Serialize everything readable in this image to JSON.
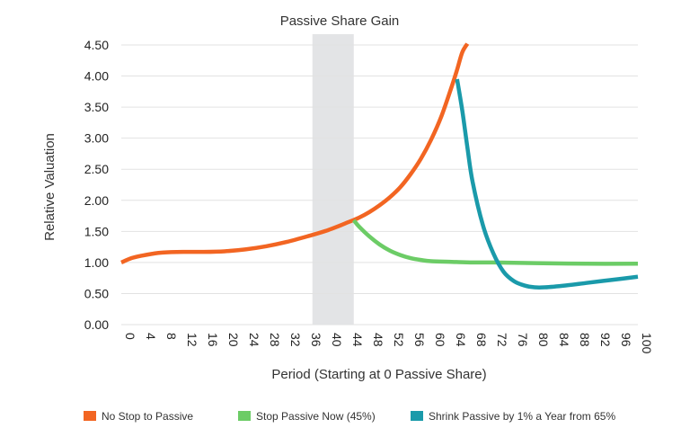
{
  "chart_data": {
    "type": "line",
    "title": "Passive Share Gain",
    "xlabel": "Period (Starting at 0 Passive Share)",
    "ylabel": "Relative Valuation",
    "xlim": [
      0,
      100
    ],
    "ylim": [
      0,
      4.5
    ],
    "x_ticks": [
      "0",
      "4",
      "8",
      "12",
      "16",
      "20",
      "24",
      "28",
      "32",
      "36",
      "40",
      "44",
      "48",
      "52",
      "56",
      "60",
      "64",
      "68",
      "72",
      "76",
      "80",
      "84",
      "88",
      "92",
      "96",
      "100"
    ],
    "y_ticks": [
      "0.00",
      "0.50",
      "1.00",
      "1.50",
      "2.00",
      "2.50",
      "3.00",
      "3.50",
      "4.00",
      "4.50"
    ],
    "shaded_region": {
      "x_start": 37,
      "x_end": 45
    },
    "grid": "horizontal",
    "legend_position": "bottom",
    "series": [
      {
        "name": "No Stop to Passive",
        "color": "#f26522",
        "x": [
          0,
          2,
          4,
          6,
          8,
          12,
          16,
          20,
          24,
          28,
          32,
          36,
          40,
          44,
          46,
          48,
          50,
          52,
          54,
          56,
          58,
          60,
          62,
          64,
          65,
          66,
          67
        ],
        "y": [
          1.0,
          1.07,
          1.11,
          1.14,
          1.16,
          1.17,
          1.17,
          1.18,
          1.21,
          1.26,
          1.33,
          1.42,
          1.52,
          1.65,
          1.72,
          1.81,
          1.92,
          2.05,
          2.21,
          2.42,
          2.67,
          2.98,
          3.36,
          3.84,
          4.1,
          4.38,
          4.52
        ]
      },
      {
        "name": "Stop Passive Now (45%)",
        "color": "#6ccc66",
        "x": [
          45,
          46,
          48,
          50,
          52,
          54,
          56,
          58,
          60,
          64,
          68,
          72,
          80,
          90,
          100
        ],
        "y": [
          1.68,
          1.58,
          1.42,
          1.29,
          1.19,
          1.12,
          1.07,
          1.04,
          1.02,
          1.01,
          1.0,
          1.0,
          0.99,
          0.98,
          0.98
        ]
      },
      {
        "name": "Shrink Passive by 1% a Year from 65%",
        "color": "#1a9aaa",
        "x": [
          65,
          66,
          67,
          68,
          70,
          72,
          74,
          76,
          78,
          80,
          82,
          86,
          90,
          95,
          100
        ],
        "y": [
          3.95,
          3.45,
          2.85,
          2.3,
          1.6,
          1.15,
          0.85,
          0.7,
          0.63,
          0.6,
          0.6,
          0.63,
          0.67,
          0.72,
          0.77
        ]
      }
    ]
  }
}
